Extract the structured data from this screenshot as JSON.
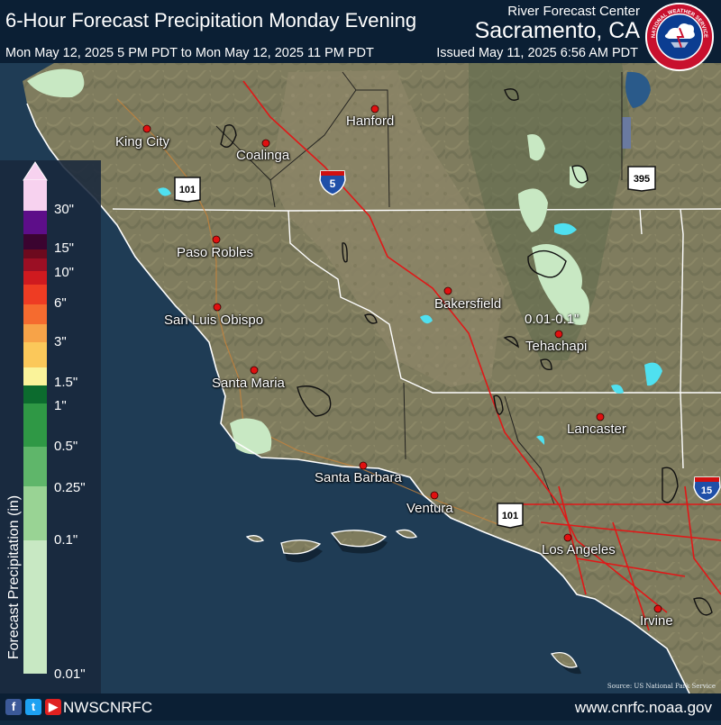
{
  "header": {
    "title": "6-Hour Forecast Precipitation Monday Evening",
    "center_small": "River Forecast Center",
    "center_big": "Sacramento, CA",
    "valid_time": "Mon May 12, 2025 5 PM PDT to Mon May 12, 2025 11 PM PDT",
    "issued": "Issued May 11, 2025 6:56 AM PDT"
  },
  "logo": {
    "icon": "nws-logo",
    "ring_text": "NATIONAL WEATHER SERVICE"
  },
  "legend": {
    "title": "Forecast Precipitation (in)",
    "labels": [
      "30\"",
      "15\"",
      "10\"",
      "6\"",
      "3\"",
      "1.5\"",
      "1\"",
      "0.5\"",
      "0.25\"",
      "0.1\"",
      "0.01\""
    ],
    "colors": [
      "#f7d2ef",
      "#5d0e89",
      "#3b0430",
      "#6d0a1e",
      "#9b0f24",
      "#cf1a1f",
      "#ee3c23",
      "#f56b2f",
      "#f7a348",
      "#fbc85a",
      "#faf39a",
      "#0c6b2e",
      "#2f9845",
      "#5fb66a",
      "#99d394",
      "#c8e8c3"
    ]
  },
  "cities": [
    "King City",
    "Coalinga",
    "Hanford",
    "Paso Robles",
    "San Luis Obispo",
    "Santa Maria",
    "Bakersfield",
    "Tehachapi",
    "Santa Barbara",
    "Ventura",
    "Lancaster",
    "Los Angeles",
    "Irvine"
  ],
  "highways": [
    "5",
    "101",
    "395",
    "101",
    "15"
  ],
  "forecast_label": "0.01-0.1\"",
  "footer": {
    "handle": "NWSCNRFC",
    "site": "www.cnrfc.noaa.gov",
    "source": "Source: US National Park Service"
  },
  "colors": {
    "ocean": "#1f3c55",
    "land": "#7d7a5c",
    "precip_light": "#c8e8c3",
    "city_dot": "#e01010",
    "header": "#0b1f34"
  }
}
